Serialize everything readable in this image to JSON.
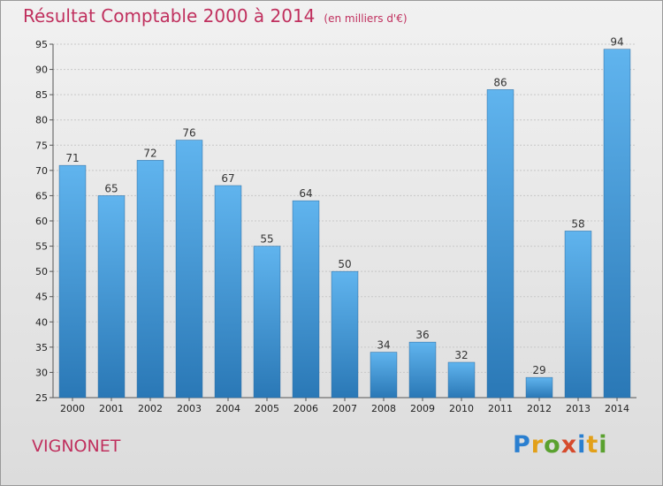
{
  "header": {
    "title": "Résultat Comptable 2000 à 2014",
    "subtitle": "(en milliers d'€)"
  },
  "footer": {
    "commune": "VIGNONET",
    "logo": "Proxiti",
    "logo_letters": [
      {
        "char": "P",
        "color": "#2a7fd0"
      },
      {
        "char": "r",
        "color": "#e2a019"
      },
      {
        "char": "o",
        "color": "#5aa12f"
      },
      {
        "char": "x",
        "color": "#d64a2c"
      },
      {
        "char": "i",
        "color": "#2a7fd0"
      },
      {
        "char": "t",
        "color": "#e2a019"
      },
      {
        "char": "i",
        "color": "#5aa12f"
      }
    ]
  },
  "colors": {
    "bar_light": "#60b4ee",
    "bar_dark": "#2a78b6",
    "accent": "#c0305e"
  },
  "chart_data": {
    "type": "bar",
    "title": "Résultat Comptable 2000 à 2014",
    "subtitle": "(en milliers d'€)",
    "categories": [
      "2000",
      "2001",
      "2002",
      "2003",
      "2004",
      "2005",
      "2006",
      "2007",
      "2008",
      "2009",
      "2010",
      "2011",
      "2012",
      "2013",
      "2014"
    ],
    "values": [
      71,
      65,
      72,
      76,
      67,
      55,
      64,
      50,
      34,
      36,
      32,
      86,
      29,
      58,
      94
    ],
    "ylim": [
      25,
      95
    ],
    "yticks": [
      25,
      30,
      35,
      40,
      45,
      50,
      55,
      60,
      65,
      70,
      75,
      80,
      85,
      90,
      95
    ],
    "grid": true,
    "xlabel": "",
    "ylabel": ""
  }
}
